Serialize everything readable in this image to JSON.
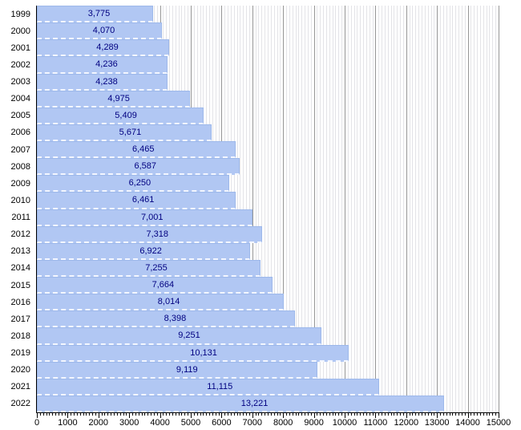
{
  "chart_data": {
    "type": "bar",
    "orientation": "horizontal",
    "title": "",
    "xlabel": "",
    "ylabel": "",
    "categories": [
      "1999",
      "2000",
      "2001",
      "2002",
      "2003",
      "2004",
      "2005",
      "2006",
      "2007",
      "2008",
      "2009",
      "2010",
      "2011",
      "2012",
      "2013",
      "2014",
      "2015",
      "2016",
      "2017",
      "2018",
      "2019",
      "2020",
      "2021",
      "2022"
    ],
    "values": [
      3775,
      4070,
      4289,
      4236,
      4238,
      4975,
      5409,
      5671,
      6465,
      6587,
      6250,
      6461,
      7001,
      7318,
      6922,
      7255,
      7664,
      8014,
      8398,
      9251,
      10131,
      9119,
      11115,
      13221
    ],
    "value_labels": [
      "3,775",
      "4,070",
      "4,289",
      "4,236",
      "4,238",
      "4,975",
      "5,409",
      "5,671",
      "6,465",
      "6,587",
      "6,250",
      "6,461",
      "7,001",
      "7,318",
      "6,922",
      "7,255",
      "7,664",
      "8,014",
      "8,398",
      "9,251",
      "10,131",
      "9,119",
      "11,115",
      "13,221"
    ],
    "xlim": [
      0,
      15000
    ],
    "x_tick_labels": [
      "0",
      "1000",
      "2000",
      "3000",
      "4000",
      "5000",
      "6000",
      "7000",
      "8000",
      "9000",
      "10000",
      "11000",
      "12000",
      "13000",
      "14000",
      "15000"
    ],
    "x_major_step": 1000,
    "x_minor_step": 100,
    "grid": "vertical minor and major gridlines on",
    "legend": "none",
    "colors": {
      "bar_fill": "#b1c7f3",
      "bar_border": "#9db8ea",
      "bar_separator_dash": "#f4f7ff",
      "value_label_text": "#000080",
      "axis_line": "#000000",
      "tick_label_text": "#000000",
      "grid_minor": "#e3e3e7",
      "grid_major": "#969696",
      "background": "#ffffff"
    }
  }
}
